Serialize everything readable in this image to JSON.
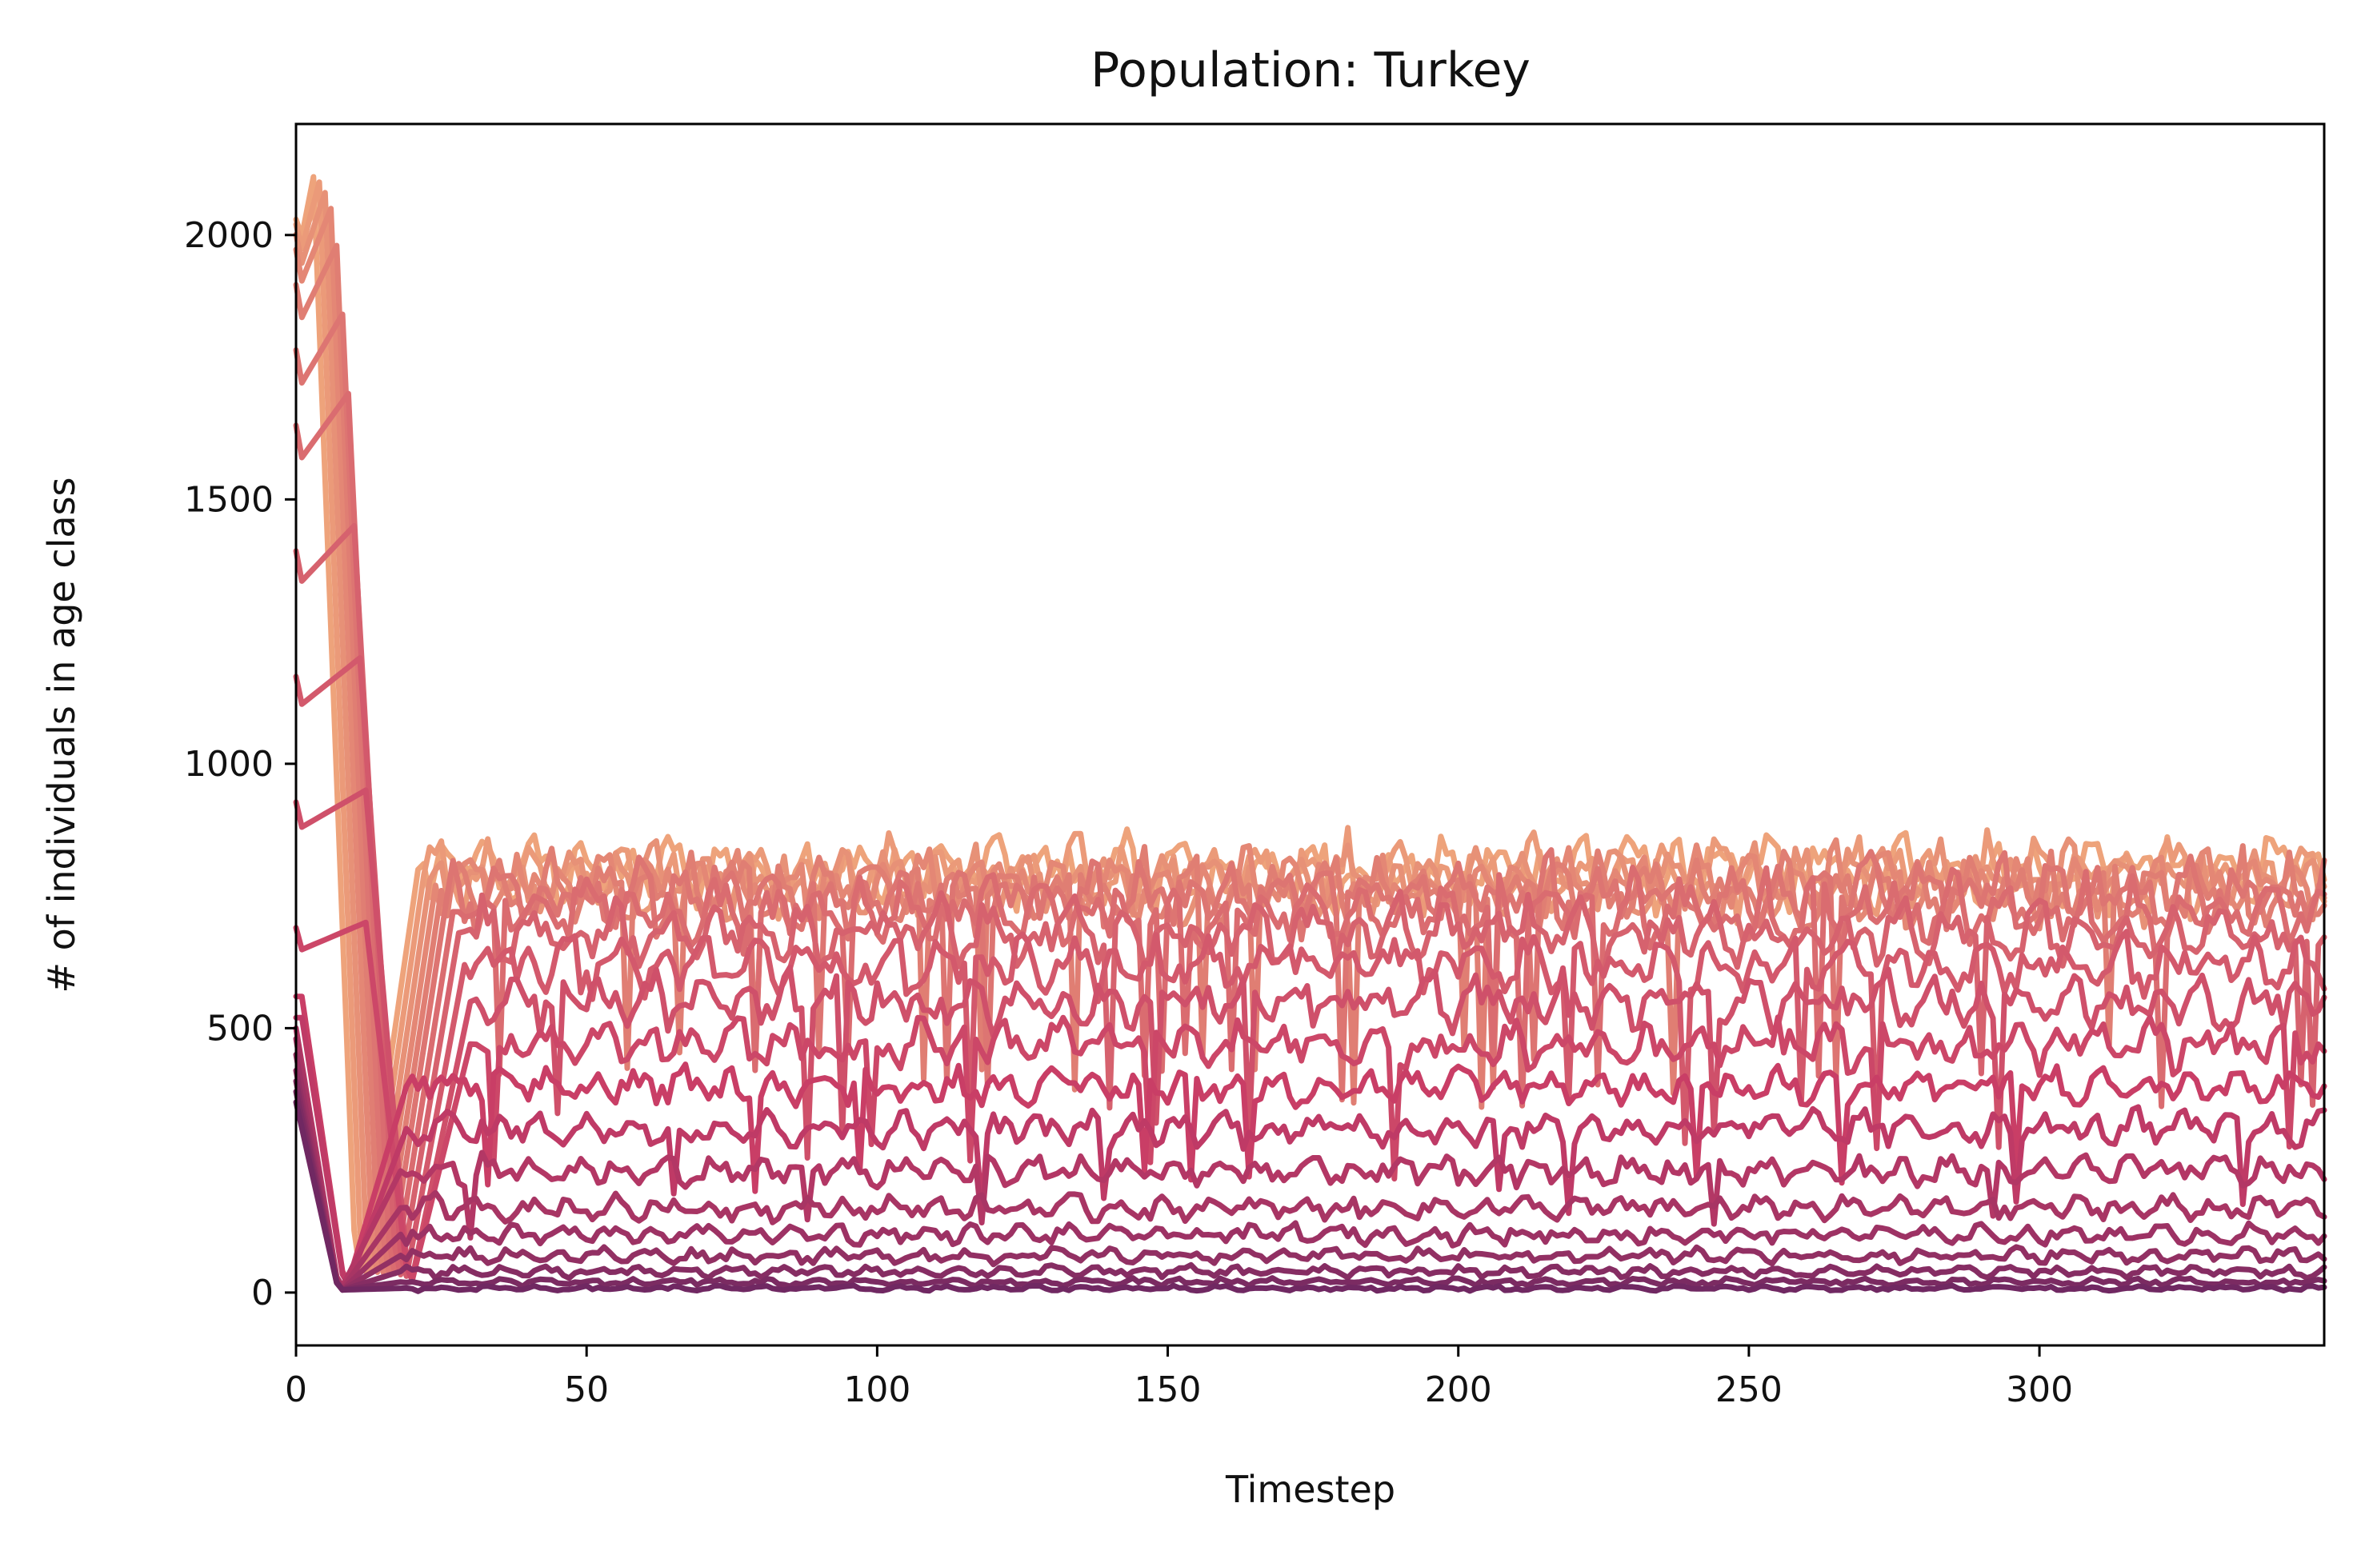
{
  "chart_data": {
    "type": "line",
    "title": "Population: Turkey",
    "xlabel": "Timestep",
    "ylabel": "# of individuals in age class",
    "xlim": [
      0,
      349
    ],
    "ylim": [
      -100,
      2210
    ],
    "x_ticks": [
      0,
      50,
      100,
      150,
      200,
      250,
      300
    ],
    "y_ticks": [
      0,
      500,
      1000,
      1500,
      2000
    ],
    "grid": false,
    "legend": "none",
    "colormap": "flare",
    "color_dark": "#4a2060",
    "color_mid": "#c83c66",
    "color_light": "#eea37b",
    "series_count": 20,
    "series_note_hidden": true,
    "series": [
      {
        "peak": 2110,
        "peak_t": 3,
        "level": 800,
        "amp": 50
      },
      {
        "peak": 2100,
        "peak_t": 4,
        "level": 790,
        "amp": 50
      },
      {
        "peak": 2080,
        "peak_t": 5,
        "level": 780,
        "amp": 50
      },
      {
        "peak": 2050,
        "peak_t": 6,
        "level": 770,
        "amp": 50
      },
      {
        "peak": 1980,
        "peak_t": 7,
        "level": 760,
        "amp": 50
      },
      {
        "peak": 1850,
        "peak_t": 8,
        "level": 750,
        "amp": 50
      },
      {
        "peak": 1700,
        "peak_t": 9,
        "level": 720,
        "amp": 50
      },
      {
        "peak": 1450,
        "peak_t": 10,
        "level": 680,
        "amp": 45
      },
      {
        "peak": 1200,
        "peak_t": 11,
        "level": 620,
        "amp": 40
      },
      {
        "peak": 950,
        "peak_t": 12,
        "level": 550,
        "amp": 38
      },
      {
        "peak": 700,
        "peak_t": 12,
        "level": 470,
        "amp": 35
      },
      {
        "peak": 560,
        "peak_t": 1,
        "level": 390,
        "amp": 30
      },
      {
        "peak": 520,
        "peak_t": 1,
        "level": 310,
        "amp": 28
      },
      {
        "peak": 500,
        "peak_t": 0,
        "level": 230,
        "amp": 25
      },
      {
        "peak": 480,
        "peak_t": 0,
        "level": 160,
        "amp": 20
      },
      {
        "peak": 450,
        "peak_t": 0,
        "level": 110,
        "amp": 16
      },
      {
        "peak": 420,
        "peak_t": 0,
        "level": 70,
        "amp": 12
      },
      {
        "peak": 400,
        "peak_t": 0,
        "level": 40,
        "amp": 9
      },
      {
        "peak": 380,
        "peak_t": 0,
        "level": 20,
        "amp": 6
      },
      {
        "peak": 360,
        "peak_t": 0,
        "level": 8,
        "amp": 4
      }
    ]
  }
}
